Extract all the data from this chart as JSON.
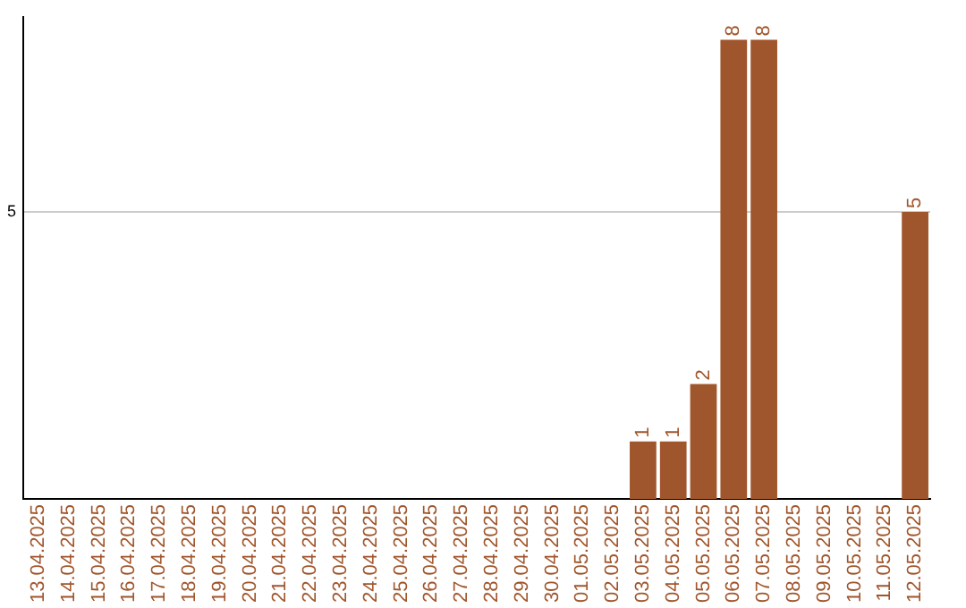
{
  "chart_data": {
    "type": "bar",
    "categories": [
      "13.04.2025",
      "14.04.2025",
      "15.04.2025",
      "16.04.2025",
      "17.04.2025",
      "18.04.2025",
      "19.04.2025",
      "20.04.2025",
      "21.04.2025",
      "22.04.2025",
      "23.04.2025",
      "24.04.2025",
      "25.04.2025",
      "26.04.2025",
      "27.04.2025",
      "28.04.2025",
      "29.04.2025",
      "30.04.2025",
      "01.05.2025",
      "02.05.2025",
      "03.05.2025",
      "04.05.2025",
      "05.05.2025",
      "06.05.2025",
      "07.05.2025",
      "08.05.2025",
      "09.05.2025",
      "10.05.2025",
      "11.05.2025",
      "12.05.2025"
    ],
    "values": [
      null,
      null,
      null,
      null,
      null,
      null,
      null,
      null,
      null,
      null,
      null,
      null,
      null,
      null,
      null,
      null,
      null,
      null,
      null,
      null,
      1,
      1,
      2,
      8,
      8,
      null,
      null,
      null,
      null,
      5
    ],
    "color": "#a0562c",
    "ylim": [
      0,
      8.4
    ],
    "yticks": [
      5
    ],
    "grid": "y",
    "data_labels": true,
    "legend": false
  }
}
